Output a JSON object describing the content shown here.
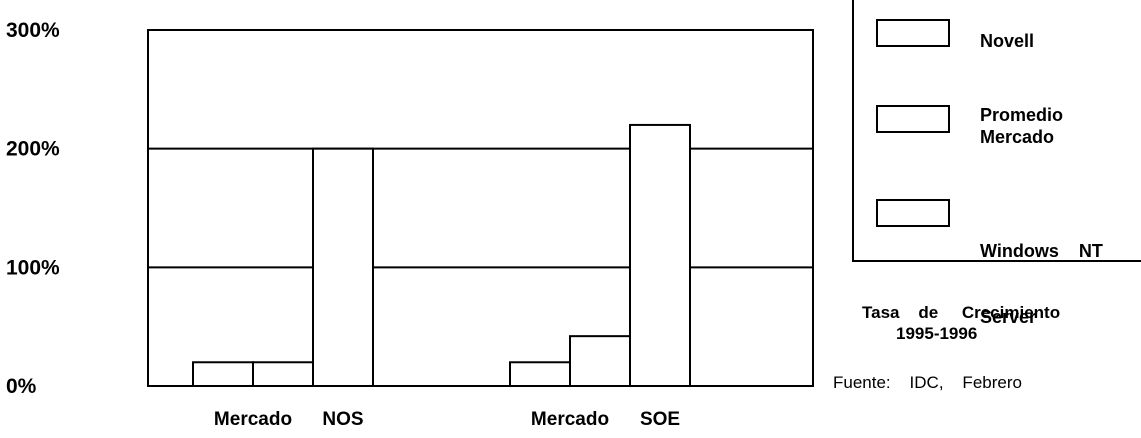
{
  "chart_data": {
    "type": "bar",
    "y_ticks": [
      "300%",
      "200%",
      "100%",
      "0%"
    ],
    "ylim": [
      0,
      300
    ],
    "grid": true,
    "groups": [
      {
        "label_left": "Mercado",
        "label_right": "NOS",
        "values": [
          20,
          20,
          200
        ]
      },
      {
        "label_left": "Mercado",
        "label_right": "SOE",
        "values": [
          20,
          42,
          220
        ]
      }
    ],
    "series": [
      {
        "name": "Novell"
      },
      {
        "name": "Promedio Mercado"
      },
      {
        "name": "Windows NT Server"
      }
    ],
    "legend_placement": "top-right"
  },
  "legend": {
    "items": [
      {
        "line1": "Novell",
        "line2": ""
      },
      {
        "line1": "Promedio",
        "line2": "Mercado"
      },
      {
        "line1": "Windows    NT",
        "line2": "Server"
      }
    ]
  },
  "notes": {
    "growth_line1": "Tasa    de     Crecimiento",
    "growth_line2": "1995-1996",
    "source": "Fuente:    IDC,    Febrero"
  }
}
